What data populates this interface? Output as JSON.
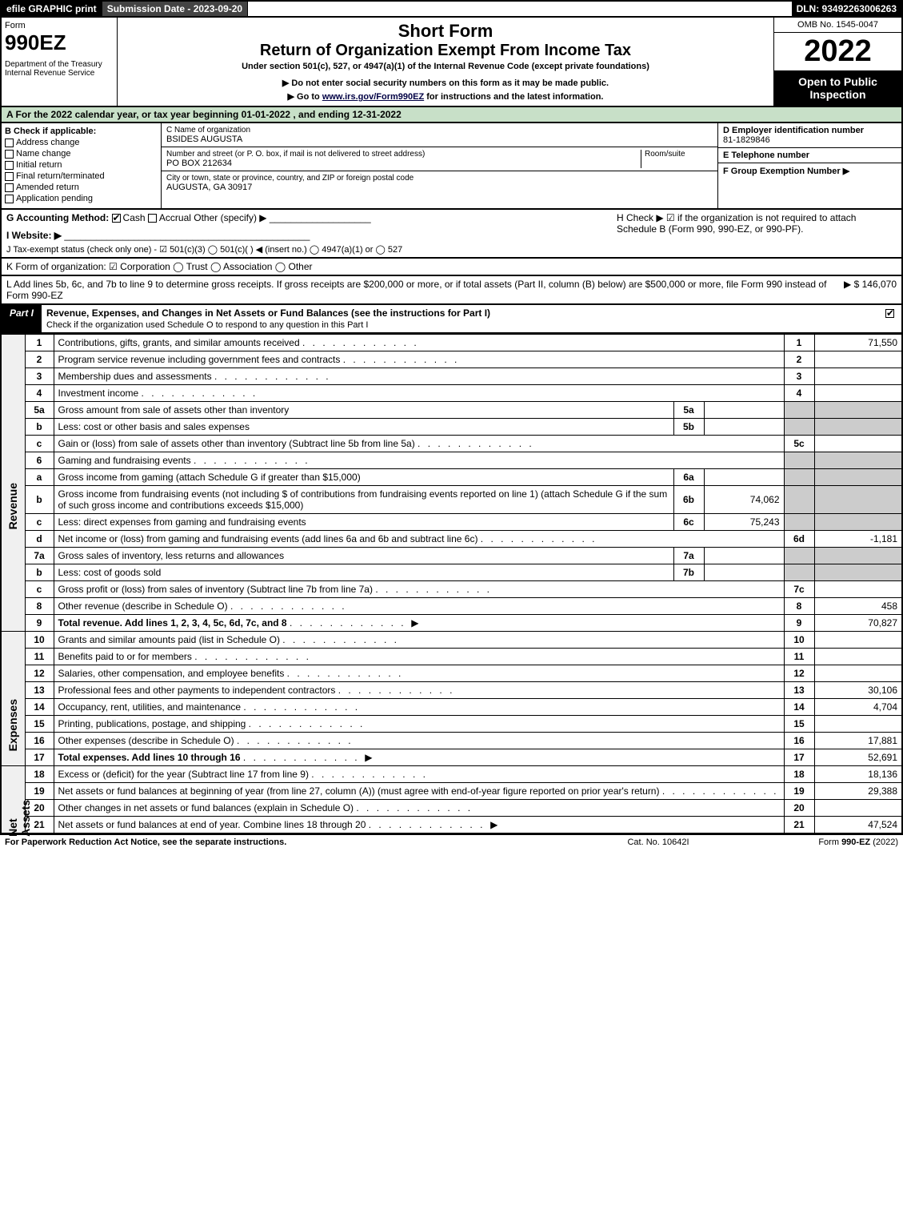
{
  "topbar": {
    "efile": "efile GRAPHIC print",
    "sub_label": "Submission Date - 2023-09-20",
    "dln": "DLN: 93492263006263"
  },
  "header": {
    "form_word": "Form",
    "form_no": "990EZ",
    "dept": "Department of the Treasury\nInternal Revenue Service",
    "short_form": "Short Form",
    "return_title": "Return of Organization Exempt From Income Tax",
    "subtitle": "Under section 501(c), 527, or 4947(a)(1) of the Internal Revenue Code (except private foundations)",
    "note1": "▶ Do not enter social security numbers on this form as it may be made public.",
    "note2_pre": "▶ Go to ",
    "note2_link": "www.irs.gov/Form990EZ",
    "note2_post": " for instructions and the latest information.",
    "omb": "OMB No. 1545-0047",
    "year": "2022",
    "open": "Open to Public Inspection"
  },
  "line_a": "A  For the 2022 calendar year, or tax year beginning 01-01-2022 , and ending 12-31-2022",
  "box_b": {
    "title": "B  Check if applicable:",
    "items": [
      "Address change",
      "Name change",
      "Initial return",
      "Final return/terminated",
      "Amended return",
      "Application pending"
    ]
  },
  "box_c": {
    "label_name": "C Name of organization",
    "name": "BSIDES AUGUSTA",
    "label_addr": "Number and street (or P. O. box, if mail is not delivered to street address)",
    "room": "Room/suite",
    "addr": "PO BOX 212634",
    "label_city": "City or town, state or province, country, and ZIP or foreign postal code",
    "city": "AUGUSTA, GA  30917"
  },
  "box_d": {
    "label": "D Employer identification number",
    "value": "81-1829846"
  },
  "box_e": {
    "label": "E Telephone number",
    "value": ""
  },
  "box_f": {
    "label": "F Group Exemption Number  ▶",
    "value": ""
  },
  "line_g": {
    "label": "G Accounting Method:",
    "cash": "Cash",
    "accrual": "Accrual",
    "other": "Other (specify) ▶"
  },
  "line_h": "H  Check ▶ ☑ if the organization is not required to attach Schedule B (Form 990, 990-EZ, or 990-PF).",
  "line_i": {
    "label": "I Website: ▶"
  },
  "line_j": "J Tax-exempt status (check only one) - ☑ 501(c)(3) ◯ 501(c)(  ) ◀ (insert no.) ◯ 4947(a)(1) or ◯ 527",
  "line_k": "K Form of organization: ☑ Corporation  ◯ Trust  ◯ Association  ◯ Other",
  "line_l": {
    "text": "L Add lines 5b, 6c, and 7b to line 9 to determine gross receipts. If gross receipts are $200,000 or more, or if total assets (Part II, column (B) below) are $500,000 or more, file Form 990 instead of Form 990-EZ",
    "amount": "▶ $ 146,070"
  },
  "part1": {
    "tag": "Part I",
    "title": "Revenue, Expenses, and Changes in Net Assets or Fund Balances (see the instructions for Part I)",
    "sub": "Check if the organization used Schedule O to respond to any question in this Part I"
  },
  "sections": {
    "revenue": "Revenue",
    "expenses": "Expenses",
    "netassets": "Net Assets"
  },
  "rows": [
    {
      "sec": "rev",
      "n": "1",
      "d": "Contributions, gifts, grants, and similar amounts received",
      "rn": "1",
      "rv": "71,550"
    },
    {
      "sec": "rev",
      "n": "2",
      "d": "Program service revenue including government fees and contracts",
      "rn": "2",
      "rv": ""
    },
    {
      "sec": "rev",
      "n": "3",
      "d": "Membership dues and assessments",
      "rn": "3",
      "rv": ""
    },
    {
      "sec": "rev",
      "n": "4",
      "d": "Investment income",
      "rn": "4",
      "rv": ""
    },
    {
      "sec": "rev",
      "n": "5a",
      "d": "Gross amount from sale of assets other than inventory",
      "sn": "5a",
      "sv": "",
      "shade": true
    },
    {
      "sec": "rev",
      "n": "b",
      "d": "Less: cost or other basis and sales expenses",
      "sn": "5b",
      "sv": "",
      "shade": true
    },
    {
      "sec": "rev",
      "n": "c",
      "d": "Gain or (loss) from sale of assets other than inventory (Subtract line 5b from line 5a)",
      "rn": "5c",
      "rv": ""
    },
    {
      "sec": "rev",
      "n": "6",
      "d": "Gaming and fundraising events",
      "shade": true,
      "noright": true
    },
    {
      "sec": "rev",
      "n": "a",
      "d": "Gross income from gaming (attach Schedule G if greater than $15,000)",
      "sn": "6a",
      "sv": "",
      "shade": true
    },
    {
      "sec": "rev",
      "n": "b",
      "d": "Gross income from fundraising events (not including $                      of contributions from fundraising events reported on line 1) (attach Schedule G if the sum of such gross income and contributions exceeds $15,000)",
      "sn": "6b",
      "sv": "74,062",
      "shade": true
    },
    {
      "sec": "rev",
      "n": "c",
      "d": "Less: direct expenses from gaming and fundraising events",
      "sn": "6c",
      "sv": "75,243",
      "shade": true
    },
    {
      "sec": "rev",
      "n": "d",
      "d": "Net income or (loss) from gaming and fundraising events (add lines 6a and 6b and subtract line 6c)",
      "rn": "6d",
      "rv": "-1,181"
    },
    {
      "sec": "rev",
      "n": "7a",
      "d": "Gross sales of inventory, less returns and allowances",
      "sn": "7a",
      "sv": "",
      "shade": true
    },
    {
      "sec": "rev",
      "n": "b",
      "d": "Less: cost of goods sold",
      "sn": "7b",
      "sv": "",
      "shade": true
    },
    {
      "sec": "rev",
      "n": "c",
      "d": "Gross profit or (loss) from sales of inventory (Subtract line 7b from line 7a)",
      "rn": "7c",
      "rv": ""
    },
    {
      "sec": "rev",
      "n": "8",
      "d": "Other revenue (describe in Schedule O)",
      "rn": "8",
      "rv": "458"
    },
    {
      "sec": "rev",
      "n": "9",
      "d": "Total revenue. Add lines 1, 2, 3, 4, 5c, 6d, 7c, and 8",
      "rn": "9",
      "rv": "70,827",
      "bold": true,
      "arrow": true
    },
    {
      "sec": "exp",
      "n": "10",
      "d": "Grants and similar amounts paid (list in Schedule O)",
      "rn": "10",
      "rv": ""
    },
    {
      "sec": "exp",
      "n": "11",
      "d": "Benefits paid to or for members",
      "rn": "11",
      "rv": ""
    },
    {
      "sec": "exp",
      "n": "12",
      "d": "Salaries, other compensation, and employee benefits",
      "rn": "12",
      "rv": ""
    },
    {
      "sec": "exp",
      "n": "13",
      "d": "Professional fees and other payments to independent contractors",
      "rn": "13",
      "rv": "30,106"
    },
    {
      "sec": "exp",
      "n": "14",
      "d": "Occupancy, rent, utilities, and maintenance",
      "rn": "14",
      "rv": "4,704"
    },
    {
      "sec": "exp",
      "n": "15",
      "d": "Printing, publications, postage, and shipping",
      "rn": "15",
      "rv": ""
    },
    {
      "sec": "exp",
      "n": "16",
      "d": "Other expenses (describe in Schedule O)",
      "rn": "16",
      "rv": "17,881"
    },
    {
      "sec": "exp",
      "n": "17",
      "d": "Total expenses. Add lines 10 through 16",
      "rn": "17",
      "rv": "52,691",
      "bold": true,
      "arrow": true
    },
    {
      "sec": "net",
      "n": "18",
      "d": "Excess or (deficit) for the year (Subtract line 17 from line 9)",
      "rn": "18",
      "rv": "18,136"
    },
    {
      "sec": "net",
      "n": "19",
      "d": "Net assets or fund balances at beginning of year (from line 27, column (A)) (must agree with end-of-year figure reported on prior year's return)",
      "rn": "19",
      "rv": "29,388"
    },
    {
      "sec": "net",
      "n": "20",
      "d": "Other changes in net assets or fund balances (explain in Schedule O)",
      "rn": "20",
      "rv": ""
    },
    {
      "sec": "net",
      "n": "21",
      "d": "Net assets or fund balances at end of year. Combine lines 18 through 20",
      "rn": "21",
      "rv": "47,524",
      "arrow": true
    }
  ],
  "footer": {
    "left": "For Paperwork Reduction Act Notice, see the separate instructions.",
    "mid": "Cat. No. 10642I",
    "right_pre": "Form ",
    "right_bold": "990-EZ",
    "right_post": " (2022)"
  }
}
